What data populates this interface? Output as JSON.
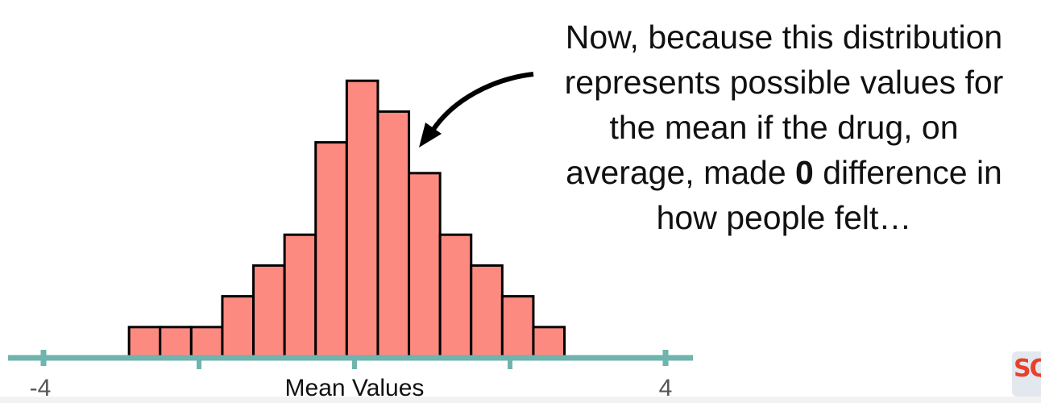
{
  "chart_data": {
    "type": "bar",
    "bins": [
      {
        "start": -2.9,
        "end": -2.5,
        "count": 1
      },
      {
        "start": -2.5,
        "end": -2.1,
        "count": 1
      },
      {
        "start": -2.1,
        "end": -1.7,
        "count": 1
      },
      {
        "start": -1.7,
        "end": -1.3,
        "count": 2
      },
      {
        "start": -1.3,
        "end": -0.9,
        "count": 3
      },
      {
        "start": -0.9,
        "end": -0.5,
        "count": 4
      },
      {
        "start": -0.5,
        "end": -0.1,
        "count": 7
      },
      {
        "start": -0.1,
        "end": 0.3,
        "count": 9
      },
      {
        "start": 0.3,
        "end": 0.7,
        "count": 8
      },
      {
        "start": 0.7,
        "end": 1.1,
        "count": 6
      },
      {
        "start": 1.1,
        "end": 1.5,
        "count": 4
      },
      {
        "start": 1.5,
        "end": 1.9,
        "count": 3
      },
      {
        "start": 1.9,
        "end": 2.3,
        "count": 2
      },
      {
        "start": 2.3,
        "end": 2.7,
        "count": 1
      }
    ],
    "xlim": [
      -4,
      4
    ],
    "major_ticks": [
      -4,
      4
    ],
    "minor_ticks": [
      -2,
      0,
      2
    ],
    "tick_labels": [
      "-4",
      "4"
    ],
    "xlabel": "Mean Values",
    "bar_color": "#fc8a80",
    "bar_stroke": "#000000",
    "axis_color": "#6fb4ae"
  },
  "annotation": {
    "lines": [
      "Now, because this distribution",
      "represents possible values for",
      "the mean if the drug, on"
    ],
    "line4_pre": "average, made ",
    "line4_bold": "0",
    "line4_post": " difference in",
    "line5": "how people felt…"
  },
  "logo": {
    "text": "SQ"
  }
}
